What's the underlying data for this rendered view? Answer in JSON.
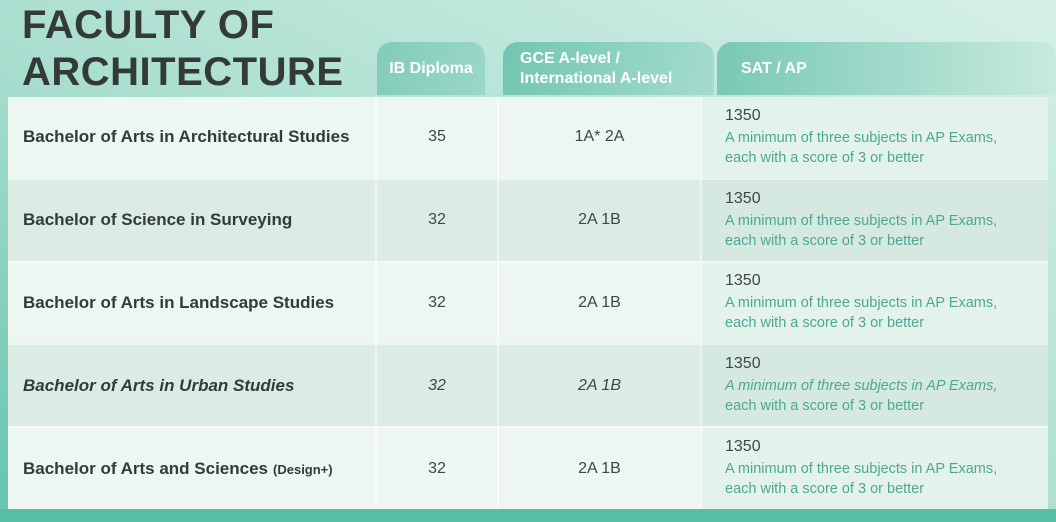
{
  "title": {
    "line1": "FACULTY OF",
    "line2": "ARCHITECTURE"
  },
  "header": {
    "ib": "IB Diploma",
    "gce_line1": "GCE A-level /",
    "gce_line2": "International A-level",
    "sat": "SAT / AP"
  },
  "rows": [
    {
      "program": "Bachelor of Arts in Architectural Studies",
      "program_suffix": "",
      "ib": "35",
      "gce": "1A* 2A",
      "sat_score": "1350",
      "ap_note_line1": "A minimum of three subjects in AP Exams,",
      "ap_note_line2": "each with a score of 3 or better",
      "italic": false
    },
    {
      "program": "Bachelor of Science in Surveying",
      "program_suffix": "",
      "ib": "32",
      "gce": "2A 1B",
      "sat_score": "1350",
      "ap_note_line1": "A minimum of three subjects in AP Exams,",
      "ap_note_line2": "each with a score of 3 or better",
      "italic": false
    },
    {
      "program": "Bachelor of Arts in Landscape Studies",
      "program_suffix": "",
      "ib": "32",
      "gce": "2A 1B",
      "sat_score": "1350",
      "ap_note_line1": "A minimum of three subjects in AP Exams,",
      "ap_note_line2": "each with a score of 3 or better",
      "italic": false
    },
    {
      "program": "Bachelor of Arts in Urban Studies",
      "program_suffix": "",
      "ib": "32",
      "gce": "2A 1B",
      "sat_score": "1350",
      "ap_note_line1": "A minimum of three subjects in AP Exams,",
      "ap_note_line2": "each with a score of 3 or better",
      "italic": true
    },
    {
      "program": "Bachelor of Arts and Sciences",
      "program_suffix": "(Design+)",
      "ib": "32",
      "gce": "2A 1B",
      "sat_score": "1350",
      "ap_note_line1": "A minimum of three subjects in AP Exams,",
      "ap_note_line2": "each with a score of 3 or better",
      "italic": false
    }
  ],
  "colors": {
    "title_text": "#333b38",
    "header_text": "#ffffff",
    "header_teal": "#72c6b1",
    "row_light": "#edf6f1",
    "row_dark": "#dcece5",
    "note_teal": "#4da795",
    "accent_bar_teal": "#57bea5"
  }
}
